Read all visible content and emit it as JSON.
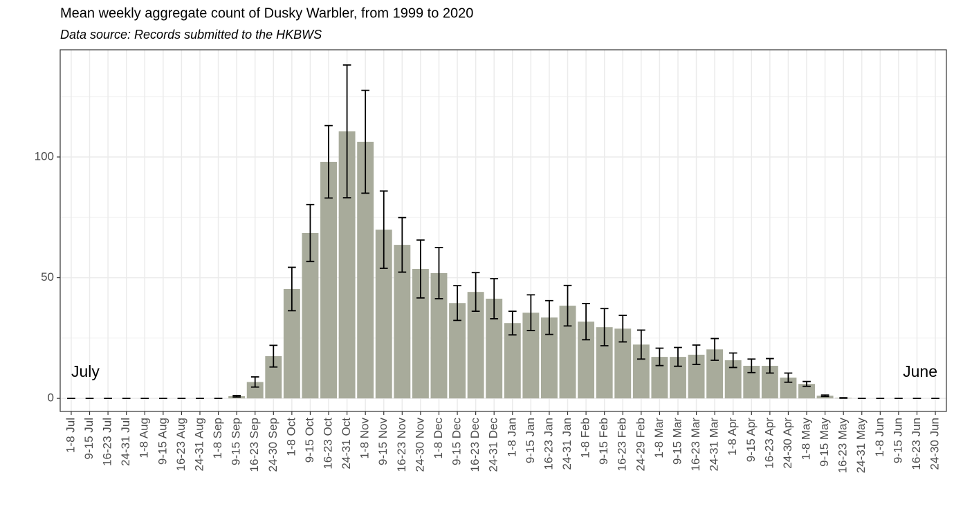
{
  "chart_data": {
    "type": "bar",
    "title": "Mean weekly aggregate count of Dusky Warbler, from 1999 to 2020",
    "subtitle": "Data source: Records submitted to the HKBWS",
    "annotations": [
      "July",
      "June"
    ],
    "categories": [
      "1-8 Jul",
      "9-15 Jul",
      "16-23 Jul",
      "24-31 Jul",
      "1-8 Aug",
      "9-15 Aug",
      "16-23 Aug",
      "24-31 Aug",
      "1-8 Sep",
      "9-15 Sep",
      "16-23 Sep",
      "24-30 Sep",
      "1-8 Oct",
      "9-15 Oct",
      "16-23 Oct",
      "24-31 Oct",
      "1-8 Nov",
      "9-15 Nov",
      "16-23 Nov",
      "24-30 Nov",
      "1-8 Dec",
      "9-15 Dec",
      "16-23 Dec",
      "24-31 Dec",
      "1-8 Jan",
      "9-15 Jan",
      "16-23 Jan",
      "24-31 Jan",
      "1-8 Feb",
      "9-15 Feb",
      "16-23 Feb",
      "24-29 Feb",
      "1-8 Mar",
      "9-15 Mar",
      "16-23 Mar",
      "24-31 Mar",
      "1-8 Apr",
      "9-15 Apr",
      "16-23 Apr",
      "24-30 Apr",
      "1-8 May",
      "9-15 May",
      "16-23 May",
      "24-31 May",
      "1-8 Jun",
      "9-15 Jun",
      "16-23 Jun",
      "24-30 Jun"
    ],
    "values": [
      0,
      0,
      0,
      0,
      0,
      0,
      0,
      0,
      0,
      0.9,
      6.8,
      17.5,
      45.3,
      68.5,
      98,
      110.6,
      106.3,
      69.9,
      63.6,
      53.6,
      51.9,
      39.5,
      44.1,
      41.3,
      31.2,
      35.5,
      33.5,
      38.4,
      31.8,
      29.5,
      28.9,
      22.3,
      17.2,
      17.2,
      18.1,
      20.3,
      15.8,
      13.5,
      13.5,
      8.6,
      6,
      1.1,
      0.2,
      0,
      0,
      0,
      0,
      0
    ],
    "errors": [
      0,
      0,
      0,
      0,
      0,
      0,
      0,
      0,
      0,
      0.3,
      2.1,
      4.5,
      9,
      11.8,
      15,
      27.5,
      21.3,
      16,
      11.3,
      12,
      10.6,
      7.2,
      8,
      8.3,
      4.9,
      7.4,
      7,
      8.4,
      7.5,
      7.7,
      5.5,
      6,
      3.6,
      3.9,
      4,
      4.5,
      3,
      2.8,
      3,
      1.9,
      1,
      0.3,
      0.1,
      0,
      0,
      0,
      0,
      0
    ],
    "color": "#a8ab9b",
    "ylim": [
      -5.4,
      144.4
    ],
    "yticks": [
      0,
      50,
      100
    ],
    "grid": true,
    "minor_grid": true
  }
}
